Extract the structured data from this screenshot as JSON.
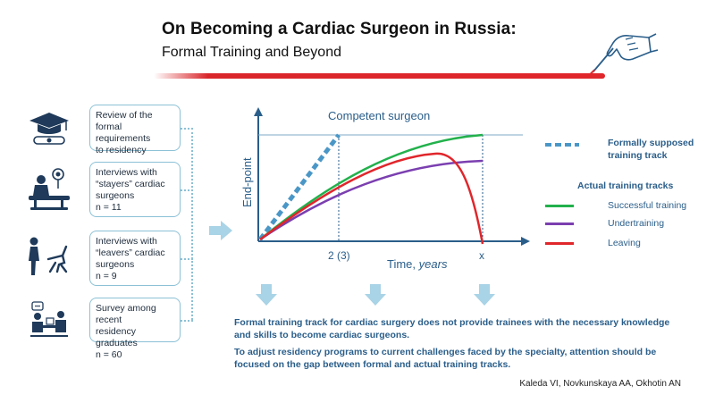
{
  "header": {
    "title": "On Becoming a Cardiac Surgeon in Russia:",
    "subtitle": "Formal Training and Beyond"
  },
  "steps": [
    {
      "icon": "graduation-cap-diploma-icon",
      "lines": [
        "Review of the formal",
        "requirements",
        "to residency"
      ]
    },
    {
      "icon": "surgeon-at-operating-table-icon",
      "lines": [
        "Interviews with",
        "“stayers” cardiac",
        "surgeons",
        "n = 11"
      ]
    },
    {
      "icon": "person-leaving-chair-icon",
      "lines": [
        "Interviews with",
        "“leavers” cardiac",
        "surgeons",
        "n = 9"
      ]
    },
    {
      "icon": "survey-discussion-icon",
      "lines": [
        "Survey among recent",
        "residency graduates",
        "n = 60"
      ]
    }
  ],
  "chart_data": {
    "type": "line",
    "title": "",
    "xlabel": "Time,",
    "xlabel_unit": "years",
    "ylabel": "End-point",
    "target_label": "Competent surgeon",
    "xticks": [
      "2 (3)",
      "x"
    ],
    "series": [
      {
        "name": "Formally supposed training track",
        "style": "dashed",
        "color": "#4a97c7"
      },
      {
        "name": "Successful training",
        "style": "solid",
        "color": "#22b14c"
      },
      {
        "name": "Undertraining",
        "style": "solid",
        "color": "#7b3fb0"
      },
      {
        "name": "Leaving",
        "style": "solid",
        "color": "#e0262b"
      }
    ]
  },
  "legend": {
    "supposed": "Formally supposed\ntraining track",
    "actual_title": "Actual training tracks",
    "items": [
      {
        "label": "Successful training",
        "color": "#22b14c"
      },
      {
        "label": "Undertraining",
        "color": "#7b3fb0"
      },
      {
        "label": "Leaving",
        "color": "#e0262b"
      }
    ]
  },
  "conclusions": [
    "Formal training track for cardiac surgery does not provide trainees with the necessary knowledge and skills to become cardiac surgeons.",
    "To adjust residency programs to current challenges faced by the specialty, attention should be focused on the gap between formal and actual training tracks."
  ],
  "authors": "Kaleda VI,  Novkunskaya AA,  Okhotin AN",
  "colors": {
    "accent_red": "#e0262b",
    "accent_blue": "#4a97c7",
    "text_blue": "#2a5e8a",
    "arrow_light": "#a9d3e6",
    "box_border": "#8cc1d6"
  }
}
